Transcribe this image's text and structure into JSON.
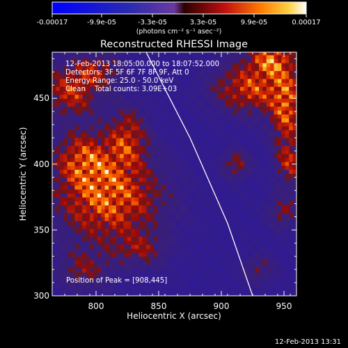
{
  "chart_data": {
    "type": "heatmap",
    "title": "Reconstructed RHESSI Image",
    "xlabel": "Heliocentric X (arcsec)",
    "ylabel": "Heliocentric Y (arcsec)",
    "xlim": [
      765,
      960
    ],
    "ylim": [
      300,
      485
    ],
    "xticks": [
      800,
      850,
      900,
      950
    ],
    "yticks": [
      300,
      350,
      400,
      450
    ],
    "colorbar": {
      "ticks": [
        "-0.00017",
        "-9.9e-05",
        "-3.3e-05",
        "3.3e-05",
        "9.9e-05",
        "0.00017"
      ],
      "unit": "(photons cm⁻² s⁻¹ asec⁻²)"
    },
    "annotations": [
      "12-Feb-2013 18:05:00.000 to 18:07:52.000",
      "Detectors: 3F 5F 6F 7F 8F 9F, Att 0",
      "Energy Range: 25.0 - 50.0 keV",
      "Clean    Total counts: 3.09E+03"
    ],
    "peak_label": "Position of Peak = [908,445]",
    "peak": [
      908,
      445
    ],
    "blobs": [
      {
        "x": 810,
        "y": 375,
        "rx": 40,
        "ry": 32,
        "amp": 1.0
      },
      {
        "x": 790,
        "y": 405,
        "rx": 22,
        "ry": 20,
        "amp": 0.7
      },
      {
        "x": 825,
        "y": 420,
        "rx": 15,
        "ry": 22,
        "amp": 0.7
      },
      {
        "x": 780,
        "y": 455,
        "rx": 22,
        "ry": 18,
        "amp": 0.75
      },
      {
        "x": 800,
        "y": 472,
        "rx": 20,
        "ry": 12,
        "amp": 0.55
      },
      {
        "x": 925,
        "y": 458,
        "rx": 30,
        "ry": 18,
        "amp": 0.85
      },
      {
        "x": 952,
        "y": 440,
        "rx": 12,
        "ry": 30,
        "amp": 0.85
      },
      {
        "x": 940,
        "y": 480,
        "rx": 18,
        "ry": 12,
        "amp": 0.9
      },
      {
        "x": 912,
        "y": 400,
        "rx": 10,
        "ry": 10,
        "amp": 0.55
      },
      {
        "x": 955,
        "y": 400,
        "rx": 10,
        "ry": 15,
        "amp": 0.6
      },
      {
        "x": 950,
        "y": 365,
        "rx": 12,
        "ry": 12,
        "amp": 0.5
      },
      {
        "x": 835,
        "y": 335,
        "rx": 20,
        "ry": 12,
        "amp": 0.45
      },
      {
        "x": 790,
        "y": 320,
        "rx": 20,
        "ry": 15,
        "amp": 0.45
      },
      {
        "x": 930,
        "y": 320,
        "rx": 12,
        "ry": 10,
        "amp": 0.4
      }
    ],
    "limb": [
      [
        840,
        485
      ],
      [
        875,
        420
      ],
      [
        905,
        355
      ],
      [
        925,
        300
      ]
    ]
  },
  "footer": {
    "timestamp": "12-Feb-2013 13:31"
  }
}
